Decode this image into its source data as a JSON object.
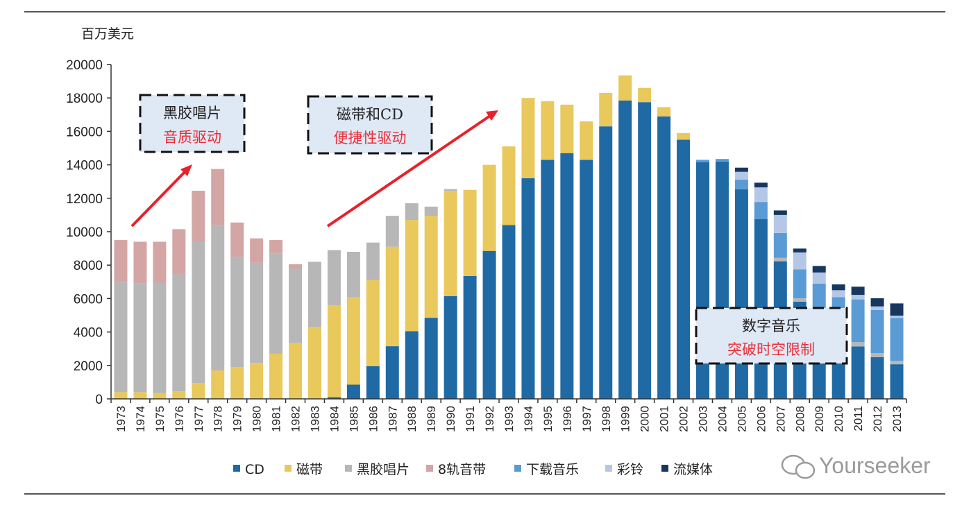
{
  "chart_data": {
    "type": "bar",
    "stacked": true,
    "ylabel": "百万美元",
    "ylim": [
      0,
      20000
    ],
    "yticks": [
      0,
      2000,
      4000,
      6000,
      8000,
      10000,
      12000,
      14000,
      16000,
      18000,
      20000
    ],
    "grid": false,
    "legend_position": "bottom",
    "categories": [
      "1973",
      "1974",
      "1975",
      "1976",
      "1977",
      "1978",
      "1979",
      "1980",
      "1981",
      "1982",
      "1983",
      "1984",
      "1985",
      "1986",
      "1987",
      "1988",
      "1989",
      "1990",
      "1991",
      "1992",
      "1993",
      "1994",
      "1995",
      "1996",
      "1997",
      "1998",
      "1999",
      "2000",
      "2001",
      "2002",
      "2003",
      "2004",
      "2005",
      "2006",
      "2007",
      "2008",
      "2009",
      "2010",
      "2011",
      "2012",
      "2013"
    ],
    "series": [
      {
        "name": "CD",
        "color": "#1f6aa5",
        "values": [
          0,
          0,
          0,
          0,
          0,
          0,
          0,
          0,
          0,
          0,
          0,
          100,
          850,
          1950,
          3150,
          4050,
          4850,
          6150,
          7350,
          8850,
          10400,
          13200,
          14300,
          14700,
          14300,
          16300,
          17850,
          17750,
          16900,
          15500,
          14150,
          14200,
          12540,
          10760,
          8230,
          5810,
          4300,
          3400,
          3140,
          2490,
          2070
        ]
      },
      {
        "name": "磁带",
        "color": "#e9c85c",
        "values": [
          400,
          400,
          350,
          450,
          950,
          1700,
          1900,
          2150,
          2700,
          3350,
          4300,
          5500,
          5250,
          5150,
          5950,
          6650,
          6100,
          6300,
          5150,
          5150,
          4700,
          4800,
          3500,
          2900,
          2300,
          2000,
          1500,
          850,
          550,
          400,
          0,
          0,
          0,
          0,
          0,
          0,
          0,
          0,
          0,
          0,
          0
        ]
      },
      {
        "name": "黑胶唱片",
        "color": "#b7b7b7",
        "values": [
          6600,
          6500,
          6600,
          7000,
          8450,
          8700,
          6600,
          6000,
          6000,
          4450,
          3900,
          3300,
          2700,
          2250,
          1850,
          1000,
          550,
          100,
          0,
          0,
          0,
          0,
          0,
          0,
          0,
          0,
          0,
          0,
          0,
          0,
          0,
          0,
          0,
          0,
          200,
          200,
          100,
          100,
          250,
          240,
          210
        ]
      },
      {
        "name": "8轨音带",
        "color": "#d4a5a5",
        "values": [
          2500,
          2500,
          2450,
          2700,
          3050,
          3350,
          2050,
          1450,
          800,
          250,
          0,
          0,
          0,
          0,
          0,
          0,
          0,
          0,
          0,
          0,
          0,
          0,
          0,
          0,
          0,
          0,
          0,
          0,
          0,
          0,
          0,
          0,
          0,
          0,
          0,
          0,
          0,
          0,
          0,
          0,
          0
        ]
      },
      {
        "name": "下载音乐",
        "color": "#5b9bd5",
        "values": [
          0,
          0,
          0,
          0,
          0,
          0,
          0,
          0,
          0,
          0,
          0,
          0,
          0,
          0,
          0,
          0,
          0,
          0,
          0,
          0,
          0,
          0,
          0,
          0,
          0,
          0,
          0,
          0,
          0,
          0,
          150,
          150,
          570,
          1020,
          1490,
          1740,
          2490,
          2590,
          2560,
          2590,
          2560
        ]
      },
      {
        "name": "彩铃",
        "color": "#b4c7e7",
        "values": [
          0,
          0,
          0,
          0,
          0,
          0,
          0,
          0,
          0,
          0,
          0,
          0,
          0,
          0,
          0,
          0,
          0,
          0,
          0,
          0,
          0,
          0,
          0,
          0,
          0,
          0,
          0,
          0,
          0,
          0,
          0,
          0,
          470,
          870,
          1080,
          1010,
          670,
          410,
          270,
          210,
          140
        ]
      },
      {
        "name": "流媒体",
        "color": "#17375e",
        "values": [
          0,
          0,
          0,
          0,
          0,
          0,
          0,
          0,
          0,
          0,
          0,
          0,
          0,
          0,
          0,
          0,
          0,
          0,
          0,
          0,
          0,
          0,
          0,
          0,
          0,
          0,
          0,
          0,
          0,
          0,
          0,
          0,
          250,
          280,
          270,
          230,
          390,
          350,
          490,
          490,
          730
        ]
      }
    ],
    "annotations": [
      {
        "line1": "黑胶唱片",
        "line2": "音质驱动"
      },
      {
        "line1": "磁带和CD",
        "line2": "便捷性驱动"
      },
      {
        "line1": "数字音乐",
        "line2": "突破时空限制"
      }
    ],
    "arrow_color": "#e8212a",
    "watermark": "Yourseeker"
  }
}
